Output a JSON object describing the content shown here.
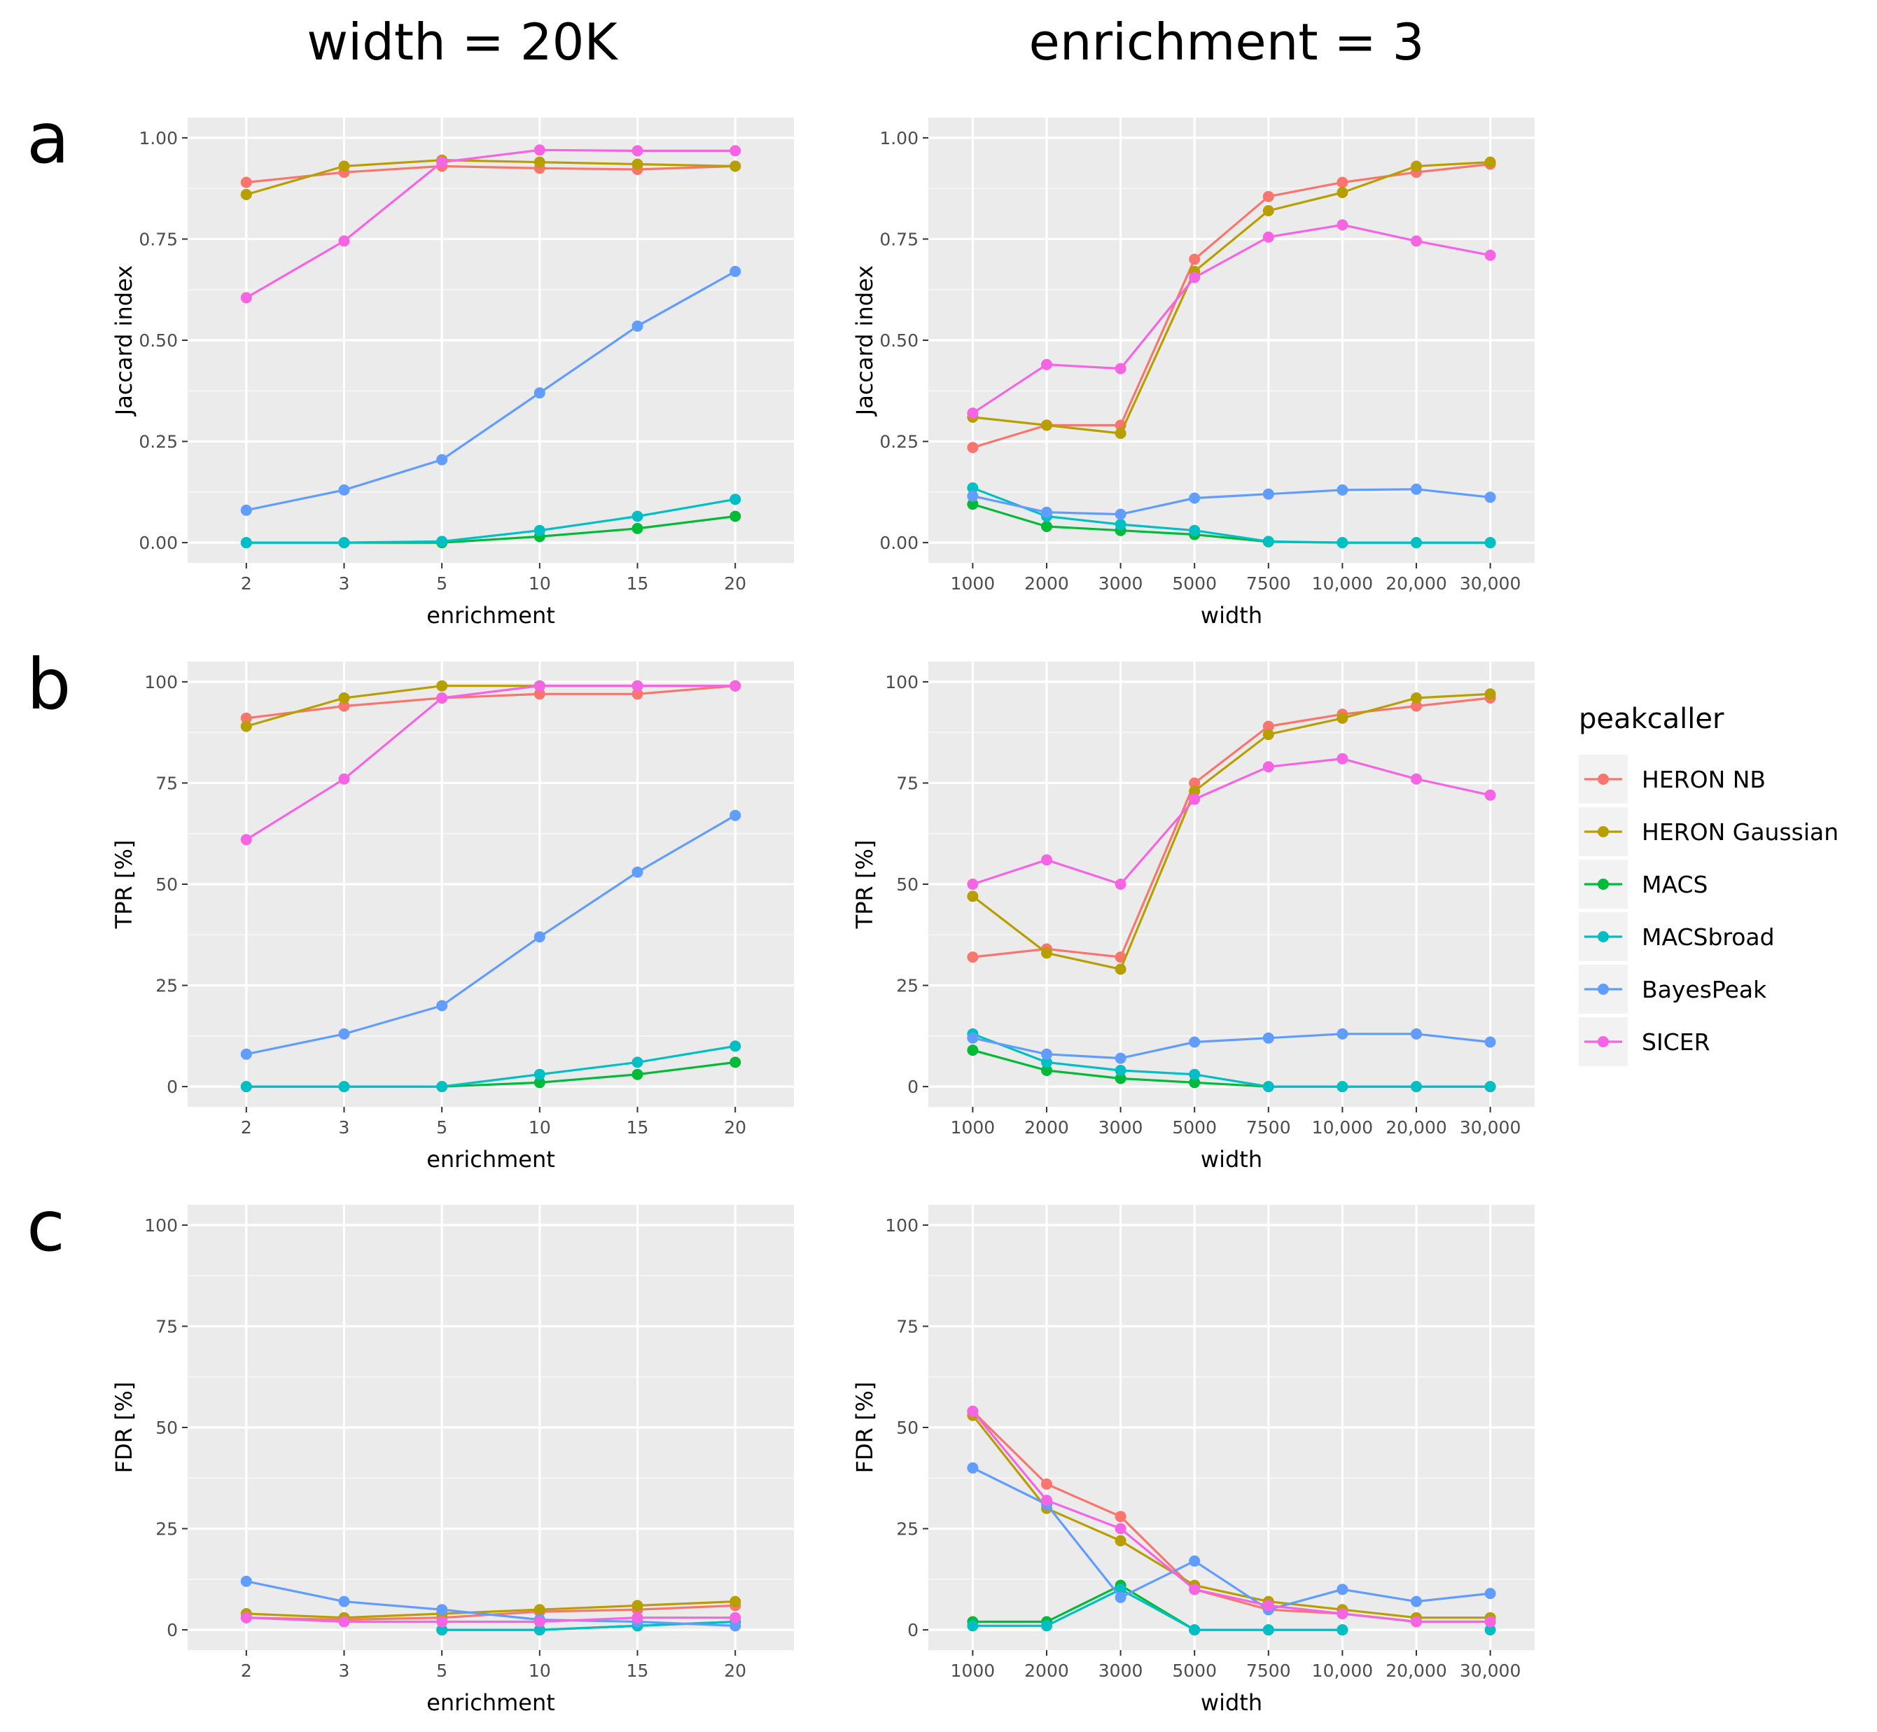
{
  "column_titles": [
    "width = 20K",
    "enrichment = 3"
  ],
  "row_letters": [
    "a",
    "b",
    "c"
  ],
  "legend": {
    "title": "peakcaller",
    "entries": [
      {
        "name": "HERON NB",
        "color": "#f8766d"
      },
      {
        "name": "HERON Gaussian",
        "color": "#b79f00"
      },
      {
        "name": "MACS",
        "color": "#00ba38"
      },
      {
        "name": "MACSbroad",
        "color": "#00bfc4"
      },
      {
        "name": "BayesPeak",
        "color": "#619cff"
      },
      {
        "name": "SICER",
        "color": "#f564e3"
      }
    ]
  },
  "chart_data": [
    {
      "id": "a-left",
      "type": "line",
      "row": "a",
      "column": 0,
      "xlabel": "enrichment",
      "ylabel": "Jaccard index",
      "categories": [
        "2",
        "3",
        "5",
        "10",
        "15",
        "20"
      ],
      "ylim": [
        -0.05,
        1.05
      ],
      "yticks": [
        0,
        0.25,
        0.5,
        0.75,
        1.0
      ],
      "ytick_labels": [
        "0.00",
        "0.25",
        "0.50",
        "0.75",
        "1.00"
      ],
      "series": [
        {
          "name": "HERON NB",
          "values": [
            0.89,
            0.915,
            0.93,
            0.925,
            0.922,
            0.93
          ]
        },
        {
          "name": "HERON Gaussian",
          "values": [
            0.86,
            0.93,
            0.945,
            0.94,
            0.935,
            0.93
          ]
        },
        {
          "name": "MACS",
          "values": [
            0.0,
            0.0,
            0.0,
            0.015,
            0.035,
            0.065
          ]
        },
        {
          "name": "MACSbroad",
          "values": [
            0.0,
            0.0,
            0.003,
            0.03,
            0.065,
            0.107
          ]
        },
        {
          "name": "BayesPeak",
          "values": [
            0.08,
            0.13,
            0.205,
            0.37,
            0.535,
            0.67
          ]
        },
        {
          "name": "SICER",
          "values": [
            0.605,
            0.745,
            0.94,
            0.97,
            0.968,
            0.968
          ]
        }
      ]
    },
    {
      "id": "a-right",
      "type": "line",
      "row": "a",
      "column": 1,
      "xlabel": "width",
      "ylabel": "Jaccard index",
      "categories": [
        "1000",
        "2000",
        "3000",
        "5000",
        "7500",
        "10,000",
        "20,000",
        "30,000"
      ],
      "ylim": [
        -0.05,
        1.05
      ],
      "yticks": [
        0,
        0.25,
        0.5,
        0.75,
        1.0
      ],
      "ytick_labels": [
        "0.00",
        "0.25",
        "0.50",
        "0.75",
        "1.00"
      ],
      "series": [
        {
          "name": "HERON NB",
          "values": [
            0.235,
            0.29,
            0.29,
            0.7,
            0.855,
            0.89,
            0.915,
            0.935
          ]
        },
        {
          "name": "HERON Gaussian",
          "values": [
            0.31,
            0.29,
            0.27,
            0.67,
            0.82,
            0.865,
            0.93,
            0.94
          ]
        },
        {
          "name": "MACS",
          "values": [
            0.095,
            0.04,
            0.03,
            0.02,
            0.002,
            0.0,
            0.0,
            0.0
          ]
        },
        {
          "name": "MACSbroad",
          "values": [
            0.135,
            0.065,
            0.045,
            0.03,
            0.003,
            0.0,
            0.0,
            0.0
          ]
        },
        {
          "name": "BayesPeak",
          "values": [
            0.115,
            0.075,
            0.07,
            0.11,
            0.12,
            0.13,
            0.132,
            0.112
          ]
        },
        {
          "name": "SICER",
          "values": [
            0.32,
            0.44,
            0.43,
            0.655,
            0.755,
            0.785,
            0.745,
            0.71
          ]
        }
      ]
    },
    {
      "id": "b-left",
      "type": "line",
      "row": "b",
      "column": 0,
      "xlabel": "enrichment",
      "ylabel": "TPR [%]",
      "categories": [
        "2",
        "3",
        "5",
        "10",
        "15",
        "20"
      ],
      "ylim": [
        -5,
        105
      ],
      "yticks": [
        0,
        25,
        50,
        75,
        100
      ],
      "ytick_labels": [
        "0",
        "25",
        "50",
        "75",
        "100"
      ],
      "series": [
        {
          "name": "HERON NB",
          "values": [
            91,
            94,
            96,
            97,
            97,
            99
          ]
        },
        {
          "name": "HERON Gaussian",
          "values": [
            89,
            96,
            99,
            99,
            99,
            99
          ]
        },
        {
          "name": "MACS",
          "values": [
            0,
            0,
            0,
            1,
            3,
            6
          ]
        },
        {
          "name": "MACSbroad",
          "values": [
            0,
            0,
            0,
            3,
            6,
            10
          ]
        },
        {
          "name": "BayesPeak",
          "values": [
            8,
            13,
            20,
            37,
            53,
            67
          ]
        },
        {
          "name": "SICER",
          "values": [
            61,
            76,
            96,
            99,
            99,
            99
          ]
        }
      ]
    },
    {
      "id": "b-right",
      "type": "line",
      "row": "b",
      "column": 1,
      "xlabel": "width",
      "ylabel": "TPR [%]",
      "categories": [
        "1000",
        "2000",
        "3000",
        "5000",
        "7500",
        "10,000",
        "20,000",
        "30,000"
      ],
      "ylim": [
        -5,
        105
      ],
      "yticks": [
        0,
        25,
        50,
        75,
        100
      ],
      "ytick_labels": [
        "0",
        "25",
        "50",
        "75",
        "100"
      ],
      "series": [
        {
          "name": "HERON NB",
          "values": [
            32,
            34,
            32,
            75,
            89,
            92,
            94,
            96
          ]
        },
        {
          "name": "HERON Gaussian",
          "values": [
            47,
            33,
            29,
            73,
            87,
            91,
            96,
            97
          ]
        },
        {
          "name": "MACS",
          "values": [
            9,
            4,
            2,
            1,
            0,
            0,
            0,
            0
          ]
        },
        {
          "name": "MACSbroad",
          "values": [
            13,
            6,
            4,
            3,
            0,
            0,
            0,
            0
          ]
        },
        {
          "name": "BayesPeak",
          "values": [
            12,
            8,
            7,
            11,
            12,
            13,
            13,
            11
          ]
        },
        {
          "name": "SICER",
          "values": [
            50,
            56,
            50,
            71,
            79,
            81,
            76,
            72
          ]
        }
      ]
    },
    {
      "id": "c-left",
      "type": "line",
      "row": "c",
      "column": 0,
      "xlabel": "enrichment",
      "ylabel": "FDR [%]",
      "categories": [
        "2",
        "3",
        "5",
        "10",
        "15",
        "20"
      ],
      "ylim": [
        -5,
        105
      ],
      "yticks": [
        0,
        25,
        50,
        75,
        100
      ],
      "ytick_labels": [
        "0",
        "25",
        "50",
        "75",
        "100"
      ],
      "series": [
        {
          "name": "HERON NB",
          "values": [
            3,
            2.5,
            3,
            4.5,
            5,
            6
          ]
        },
        {
          "name": "HERON Gaussian",
          "values": [
            4,
            3,
            4,
            5,
            6,
            7
          ]
        },
        {
          "name": "MACS",
          "values": [
            null,
            null,
            0,
            0,
            1,
            2
          ]
        },
        {
          "name": "MACSbroad",
          "values": [
            null,
            null,
            0,
            0,
            1,
            2
          ]
        },
        {
          "name": "BayesPeak",
          "values": [
            12,
            7,
            5,
            2.5,
            2,
            1
          ]
        },
        {
          "name": "SICER",
          "values": [
            3,
            2,
            2,
            2,
            3,
            3
          ]
        }
      ]
    },
    {
      "id": "c-right",
      "type": "line",
      "row": "c",
      "column": 1,
      "xlabel": "width",
      "ylabel": "FDR [%]",
      "categories": [
        "1000",
        "2000",
        "3000",
        "5000",
        "7500",
        "10,000",
        "20,000",
        "30,000"
      ],
      "ylim": [
        -5,
        105
      ],
      "yticks": [
        0,
        25,
        50,
        75,
        100
      ],
      "ytick_labels": [
        "0",
        "25",
        "50",
        "75",
        "100"
      ],
      "series": [
        {
          "name": "HERON NB",
          "values": [
            54,
            36,
            28,
            10,
            5,
            4,
            2,
            2
          ]
        },
        {
          "name": "HERON Gaussian",
          "values": [
            53,
            30,
            22,
            11,
            7,
            5,
            3,
            3
          ]
        },
        {
          "name": "MACS",
          "values": [
            2,
            2,
            11,
            0,
            0,
            0,
            null,
            null
          ]
        },
        {
          "name": "MACSbroad",
          "values": [
            1,
            1,
            10,
            0,
            0,
            0,
            null,
            0
          ]
        },
        {
          "name": "BayesPeak",
          "values": [
            40,
            31,
            8,
            17,
            5,
            10,
            7,
            9
          ]
        },
        {
          "name": "SICER",
          "values": [
            54,
            32,
            25,
            10,
            6,
            4,
            2,
            2
          ]
        }
      ]
    }
  ]
}
